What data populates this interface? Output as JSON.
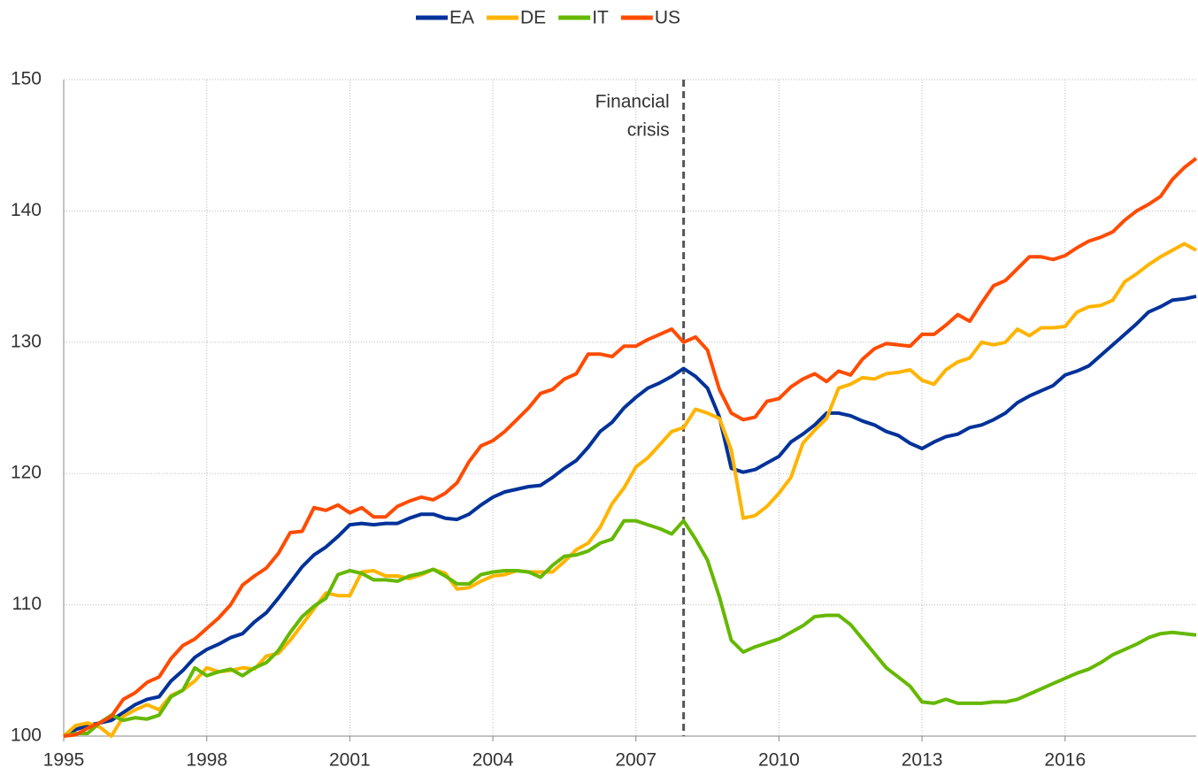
{
  "chart_data": {
    "type": "line",
    "x": [
      1995,
      1995.25,
      1995.5,
      1995.75,
      1996,
      1996.25,
      1996.5,
      1996.75,
      1997,
      1997.25,
      1997.5,
      1997.75,
      1998,
      1998.25,
      1998.5,
      1998.75,
      1999,
      1999.25,
      1999.5,
      1999.75,
      2000,
      2000.25,
      2000.5,
      2000.75,
      2001,
      2001.25,
      2001.5,
      2001.75,
      2002,
      2002.25,
      2002.5,
      2002.75,
      2003,
      2003.25,
      2003.5,
      2003.75,
      2004,
      2004.25,
      2004.5,
      2004.75,
      2005,
      2005.25,
      2005.5,
      2005.75,
      2006,
      2006.25,
      2006.5,
      2006.75,
      2007,
      2007.25,
      2007.5,
      2007.75,
      2008,
      2008.25,
      2008.5,
      2008.75,
      2009,
      2009.25,
      2009.5,
      2009.75,
      2010,
      2010.25,
      2010.5,
      2010.75,
      2011,
      2011.25,
      2011.5,
      2011.75,
      2012,
      2012.25,
      2012.5,
      2012.75,
      2013,
      2013.25,
      2013.5,
      2013.75,
      2014,
      2014.25,
      2014.5,
      2014.75,
      2015,
      2015.25,
      2015.5,
      2015.75,
      2016,
      2016.25,
      2016.5,
      2016.75,
      2017,
      2017.25,
      2017.5,
      2017.75,
      2018,
      2018.25,
      2018.5,
      2018.75
    ],
    "series": [
      {
        "name": "EA",
        "color": "#003299",
        "values": [
          100,
          100.5,
          100.8,
          101.0,
          101.2,
          101.8,
          102.4,
          102.8,
          103.0,
          104.2,
          105.0,
          106.0,
          106.6,
          107.0,
          107.5,
          107.8,
          108.7,
          109.4,
          110.5,
          111.7,
          112.9,
          113.8,
          114.4,
          115.2,
          116.1,
          116.2,
          116.1,
          116.2,
          116.2,
          116.6,
          116.9,
          116.9,
          116.6,
          116.5,
          116.9,
          117.6,
          118.2,
          118.6,
          118.8,
          119.0,
          119.1,
          119.7,
          120.4,
          121.0,
          122.0,
          123.2,
          123.9,
          125.0,
          125.8,
          126.5,
          126.9,
          127.4,
          128.0,
          127.4,
          126.5,
          124.3,
          120.4,
          120.1,
          120.3,
          120.8,
          121.3,
          122.4,
          123.0,
          123.7,
          124.6,
          124.6,
          124.4,
          124.0,
          123.7,
          123.2,
          122.9,
          122.3,
          121.9,
          122.4,
          122.8,
          123.0,
          123.5,
          123.7,
          124.1,
          124.6,
          125.4,
          125.9,
          126.3,
          126.7,
          127.5,
          127.8,
          128.2,
          129.0,
          129.8,
          130.6,
          131.4,
          132.3,
          132.7,
          133.2,
          133.3,
          133.5
        ]
      },
      {
        "name": "DE",
        "color": "#ffb400",
        "values": [
          100,
          100.8,
          101.0,
          100.7,
          100.0,
          101.5,
          102.0,
          102.4,
          102.0,
          103.1,
          103.5,
          104.2,
          105.2,
          104.9,
          105.0,
          105.2,
          105.1,
          106.1,
          106.3,
          107.3,
          108.5,
          109.7,
          110.9,
          110.7,
          110.7,
          112.5,
          112.6,
          112.2,
          112.2,
          112.0,
          112.3,
          112.7,
          112.4,
          111.2,
          111.3,
          111.8,
          112.2,
          112.3,
          112.6,
          112.5,
          112.5,
          112.5,
          113.3,
          114.2,
          114.7,
          115.9,
          117.7,
          118.9,
          120.5,
          121.2,
          122.2,
          123.2,
          123.5,
          124.9,
          124.6,
          124.2,
          121.8,
          116.6,
          116.8,
          117.5,
          118.5,
          119.7,
          122.3,
          123.3,
          124.2,
          126.5,
          126.8,
          127.3,
          127.2,
          127.6,
          127.7,
          127.9,
          127.1,
          126.8,
          127.9,
          128.5,
          128.8,
          130.0,
          129.8,
          130.0,
          131.0,
          130.5,
          131.1,
          131.1,
          131.2,
          132.3,
          132.7,
          132.8,
          133.2,
          134.6,
          135.2,
          135.9,
          136.5,
          137.0,
          137.5,
          137.0
        ]
      },
      {
        "name": "IT",
        "color": "#65b800",
        "values": [
          100,
          100.2,
          100.2,
          101.0,
          101.6,
          101.2,
          101.4,
          101.3,
          101.6,
          103.0,
          103.5,
          105.2,
          104.6,
          104.9,
          105.1,
          104.6,
          105.2,
          105.6,
          106.5,
          107.9,
          109.1,
          109.9,
          110.5,
          112.3,
          112.6,
          112.4,
          111.9,
          111.9,
          111.8,
          112.2,
          112.4,
          112.7,
          112.2,
          111.6,
          111.6,
          112.3,
          112.5,
          112.6,
          112.6,
          112.5,
          112.1,
          113.0,
          113.7,
          113.8,
          114.1,
          114.7,
          115.0,
          116.4,
          116.4,
          116.1,
          115.8,
          115.4,
          116.4,
          115.0,
          113.4,
          110.6,
          107.3,
          106.4,
          106.8,
          107.1,
          107.4,
          107.9,
          108.4,
          109.1,
          109.2,
          109.2,
          108.5,
          107.4,
          106.3,
          105.2,
          104.5,
          103.8,
          102.6,
          102.5,
          102.8,
          102.5,
          102.5,
          102.5,
          102.6,
          102.6,
          102.8,
          103.2,
          103.6,
          104.0,
          104.4,
          104.8,
          105.1,
          105.6,
          106.2,
          106.6,
          107.0,
          107.5,
          107.8,
          107.9,
          107.8,
          107.7
        ]
      },
      {
        "name": "US",
        "color": "#ff4b00",
        "values": [
          100,
          100.1,
          100.6,
          101.0,
          101.5,
          102.8,
          103.3,
          104.1,
          104.5,
          105.9,
          106.9,
          107.4,
          108.2,
          109.0,
          110.0,
          111.5,
          112.2,
          112.8,
          113.9,
          115.5,
          115.6,
          117.4,
          117.2,
          117.6,
          117.0,
          117.4,
          116.7,
          116.7,
          117.5,
          117.9,
          118.2,
          118.0,
          118.5,
          119.3,
          120.9,
          122.1,
          122.5,
          123.2,
          124.1,
          125.0,
          126.1,
          126.4,
          127.2,
          127.6,
          129.1,
          129.1,
          128.9,
          129.7,
          129.7,
          130.2,
          130.6,
          131.0,
          130.0,
          130.4,
          129.4,
          126.4,
          124.6,
          124.1,
          124.3,
          125.5,
          125.7,
          126.6,
          127.2,
          127.6,
          127.0,
          127.8,
          127.5,
          128.7,
          129.5,
          129.9,
          129.8,
          129.7,
          130.6,
          130.6,
          131.3,
          132.1,
          131.6,
          133.0,
          134.3,
          134.7,
          135.6,
          136.5,
          136.5,
          136.3,
          136.6,
          137.2,
          137.7,
          138.0,
          138.4,
          139.3,
          140.0,
          140.5,
          141.1,
          142.4,
          143.3,
          144.0
        ]
      }
    ],
    "xlim": [
      1995,
      2018.75
    ],
    "xticks": [
      1995,
      1998,
      2001,
      2004,
      2007,
      2010,
      2013,
      2016
    ],
    "ylim": [
      100,
      150
    ],
    "yticks": [
      100,
      110,
      120,
      130,
      140,
      150
    ],
    "grid": true,
    "legend": "top",
    "annotation": {
      "lines": [
        "Financial",
        "crisis"
      ],
      "x": 2008
    }
  }
}
